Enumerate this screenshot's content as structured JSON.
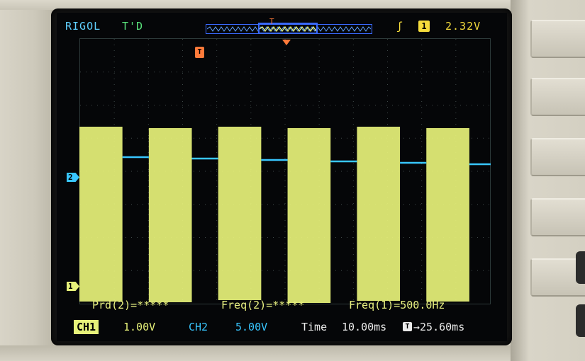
{
  "header": {
    "brand": "RIGOL",
    "trigger_state": "T'D",
    "trigger_slope_icon": "rising-edge-icon",
    "trigger_source": "1",
    "trigger_level": "2.32V"
  },
  "markers": {
    "trigger_position": "T",
    "ch2": "2",
    "ch1": "1"
  },
  "measurements": {
    "prd2": "Prd(2)=*****",
    "freq2": "Freq(2)=*****",
    "freq1": "Freq(1)=500.0Hz"
  },
  "status_bar": {
    "ch1_label": "CH1",
    "ch1_scale": "1.00V",
    "ch2_label": "CH2",
    "ch2_scale": "5.00V",
    "time_label": "Time",
    "time_scale": "10.00ms",
    "offset_icon": "T",
    "offset_value": "→25.60ms"
  },
  "waveforms": {
    "ch1_color": "#e7f27a",
    "ch2_color": "#38c6ff",
    "ch1_frequency_hz": 500,
    "ch1_duty": 0.62,
    "ch1_periods_visible": 6
  }
}
